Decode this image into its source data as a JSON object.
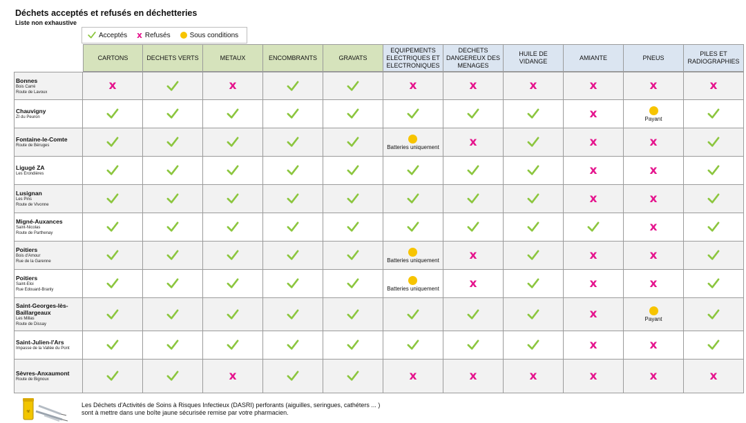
{
  "title": "Déchets acceptés et refusés en déchetteries",
  "subtitle": "Liste non exhaustive",
  "legend": {
    "accepted": "Acceptés",
    "refused": "Refusés",
    "conditional": "Sous conditions"
  },
  "columns": [
    {
      "label": "CARTONS",
      "group": "green"
    },
    {
      "label": "DECHETS VERTS",
      "group": "green"
    },
    {
      "label": "METAUX",
      "group": "green"
    },
    {
      "label": "ENCOMBRANTS",
      "group": "green"
    },
    {
      "label": "GRAVATS",
      "group": "green"
    },
    {
      "label": "EQUIPEMENTS ELECTRIQUES ET ELECTRONIQUES",
      "group": "blue"
    },
    {
      "label": "DECHETS DANGEREUX DES MENAGES",
      "group": "blue"
    },
    {
      "label": "HUILE DE VIDANGE",
      "group": "blue"
    },
    {
      "label": "AMIANTE",
      "group": "blue"
    },
    {
      "label": "PNEUS",
      "group": "blue"
    },
    {
      "label": "PILES ET RADIOGRAPHIES",
      "group": "blue"
    }
  ],
  "rows": [
    {
      "name": "Bonnes",
      "address": [
        "Bois Carré",
        "Route de Lavoux"
      ],
      "cells": [
        {
          "s": "x"
        },
        {
          "s": "ok"
        },
        {
          "s": "x"
        },
        {
          "s": "ok"
        },
        {
          "s": "ok"
        },
        {
          "s": "x"
        },
        {
          "s": "x"
        },
        {
          "s": "x"
        },
        {
          "s": "x"
        },
        {
          "s": "x"
        },
        {
          "s": "x"
        }
      ]
    },
    {
      "name": "Chauvigny",
      "address": [
        "ZI du Peuron"
      ],
      "cells": [
        {
          "s": "ok"
        },
        {
          "s": "ok"
        },
        {
          "s": "ok"
        },
        {
          "s": "ok"
        },
        {
          "s": "ok"
        },
        {
          "s": "ok"
        },
        {
          "s": "ok"
        },
        {
          "s": "ok"
        },
        {
          "s": "x"
        },
        {
          "s": "cond",
          "note": "Payant"
        },
        {
          "s": "ok"
        }
      ]
    },
    {
      "name": "Fontaine-le-Comte",
      "address": [
        "Route de Béruges"
      ],
      "cells": [
        {
          "s": "ok"
        },
        {
          "s": "ok"
        },
        {
          "s": "ok"
        },
        {
          "s": "ok"
        },
        {
          "s": "ok"
        },
        {
          "s": "cond",
          "note": "Batteries uniquement"
        },
        {
          "s": "x"
        },
        {
          "s": "ok"
        },
        {
          "s": "x"
        },
        {
          "s": "x"
        },
        {
          "s": "ok"
        }
      ]
    },
    {
      "name": "Ligugé ZA",
      "address": [
        "Les Erondières"
      ],
      "cells": [
        {
          "s": "ok"
        },
        {
          "s": "ok"
        },
        {
          "s": "ok"
        },
        {
          "s": "ok"
        },
        {
          "s": "ok"
        },
        {
          "s": "ok"
        },
        {
          "s": "ok"
        },
        {
          "s": "ok"
        },
        {
          "s": "x"
        },
        {
          "s": "x"
        },
        {
          "s": "ok"
        }
      ]
    },
    {
      "name": "Lusignan",
      "address": [
        "Les Pins",
        "Route de Vivonne"
      ],
      "cells": [
        {
          "s": "ok"
        },
        {
          "s": "ok"
        },
        {
          "s": "ok"
        },
        {
          "s": "ok"
        },
        {
          "s": "ok"
        },
        {
          "s": "ok"
        },
        {
          "s": "ok"
        },
        {
          "s": "ok"
        },
        {
          "s": "x"
        },
        {
          "s": "x"
        },
        {
          "s": "ok"
        }
      ]
    },
    {
      "name": "Migné-Auxances",
      "address": [
        "Saint-Nicolas",
        "Route de Parthenay"
      ],
      "cells": [
        {
          "s": "ok"
        },
        {
          "s": "ok"
        },
        {
          "s": "ok"
        },
        {
          "s": "ok"
        },
        {
          "s": "ok"
        },
        {
          "s": "ok"
        },
        {
          "s": "ok"
        },
        {
          "s": "ok"
        },
        {
          "s": "ok"
        },
        {
          "s": "x"
        },
        {
          "s": "ok"
        }
      ]
    },
    {
      "name": "Poitiers",
      "address": [
        "Bois d'Amour",
        "Rue de la Garenne"
      ],
      "cells": [
        {
          "s": "ok"
        },
        {
          "s": "ok"
        },
        {
          "s": "ok"
        },
        {
          "s": "ok"
        },
        {
          "s": "ok"
        },
        {
          "s": "cond",
          "note": "Batteries uniquement"
        },
        {
          "s": "x"
        },
        {
          "s": "ok"
        },
        {
          "s": "x"
        },
        {
          "s": "x"
        },
        {
          "s": "ok"
        }
      ]
    },
    {
      "name": "Poitiers",
      "address": [
        "Saint-Eloi",
        "Rue Edouard-Branly"
      ],
      "cells": [
        {
          "s": "ok"
        },
        {
          "s": "ok"
        },
        {
          "s": "ok"
        },
        {
          "s": "ok"
        },
        {
          "s": "ok"
        },
        {
          "s": "cond",
          "note": "Batteries uniquement"
        },
        {
          "s": "x"
        },
        {
          "s": "ok"
        },
        {
          "s": "x"
        },
        {
          "s": "x"
        },
        {
          "s": "ok"
        }
      ]
    },
    {
      "name": "Saint-Georges-lès-Baillargeaux",
      "address": [
        "Les Millas",
        "Route de Dissay"
      ],
      "cells": [
        {
          "s": "ok"
        },
        {
          "s": "ok"
        },
        {
          "s": "ok"
        },
        {
          "s": "ok"
        },
        {
          "s": "ok"
        },
        {
          "s": "ok"
        },
        {
          "s": "ok"
        },
        {
          "s": "ok"
        },
        {
          "s": "x"
        },
        {
          "s": "cond",
          "note": "Payant"
        },
        {
          "s": "ok"
        }
      ]
    },
    {
      "name": "Saint-Julien-l'Ars",
      "address": [
        "Impasse de la Vallée du Pont"
      ],
      "cells": [
        {
          "s": "ok"
        },
        {
          "s": "ok"
        },
        {
          "s": "ok"
        },
        {
          "s": "ok"
        },
        {
          "s": "ok"
        },
        {
          "s": "ok"
        },
        {
          "s": "ok"
        },
        {
          "s": "ok"
        },
        {
          "s": "x"
        },
        {
          "s": "x"
        },
        {
          "s": "ok"
        }
      ]
    },
    {
      "name": "Sèvres-Anxaumont",
      "address": [
        "Route de Bignoux"
      ],
      "cells": [
        {
          "s": "ok"
        },
        {
          "s": "ok"
        },
        {
          "s": "x"
        },
        {
          "s": "ok"
        },
        {
          "s": "ok"
        },
        {
          "s": "x"
        },
        {
          "s": "x"
        },
        {
          "s": "x"
        },
        {
          "s": "x"
        },
        {
          "s": "x"
        },
        {
          "s": "x"
        }
      ]
    }
  ],
  "footer": {
    "line1": "Les Déchets d'Activités de Soins à Risques Infectieux (DASRI) perforants (aiguilles, seringues, cathéters ... )",
    "line2": "sont à mettre dans une boîte jaune sécurisée remise par votre pharmacien.",
    "illustration_icon": "sharps-container-and-syringes-icon"
  },
  "colors": {
    "check": "#8cc63f",
    "cross": "#e5148d",
    "conditional": "#f7c400",
    "header_green": "#d6e3bc",
    "header_blue": "#dbe5f1"
  }
}
